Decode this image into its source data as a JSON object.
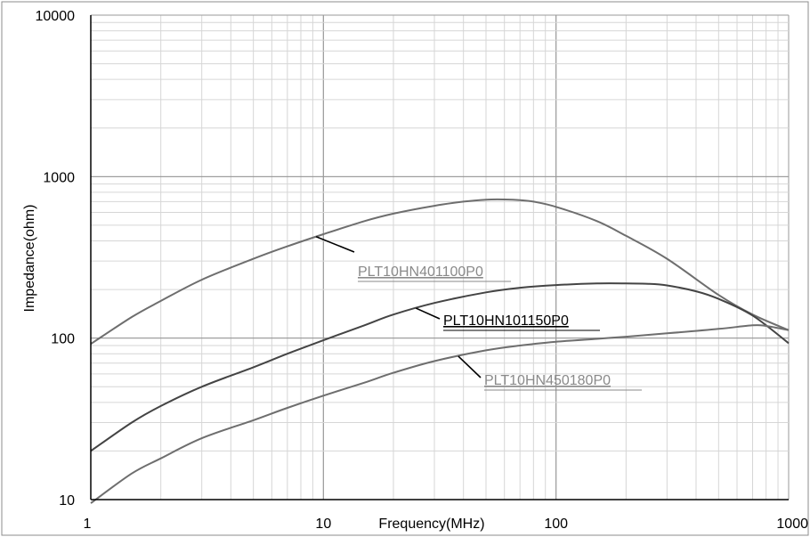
{
  "chart_data": {
    "type": "line",
    "xscale": "log",
    "yscale": "log",
    "xlim": [
      1,
      1000
    ],
    "ylim": [
      10,
      10000
    ],
    "xlabel": "Frequency(MHz)",
    "ylabel": "Impedance(ohm)",
    "grid": true,
    "x_ticks": [
      "1",
      "10",
      "100",
      "1000"
    ],
    "y_ticks": [
      "10",
      "100",
      "1000",
      "10000"
    ],
    "series": [
      {
        "name": "PLT10HN401100P0",
        "color": "#6e6e6e",
        "label_color": "#8a8a8a",
        "x": [
          1,
          1.5,
          2,
          3,
          5,
          7,
          10,
          15,
          20,
          30,
          40,
          50,
          60,
          70,
          80,
          100,
          150,
          200,
          300,
          500,
          700,
          1000
        ],
        "y": [
          92,
          135,
          170,
          230,
          310,
          370,
          440,
          530,
          590,
          660,
          700,
          720,
          722,
          715,
          700,
          650,
          530,
          430,
          310,
          185,
          140,
          112
        ]
      },
      {
        "name": "PLT10HN101150P0",
        "color": "#444444",
        "label_color": "#000000",
        "x": [
          1,
          1.5,
          2,
          3,
          5,
          7,
          10,
          15,
          20,
          30,
          50,
          70,
          100,
          150,
          200,
          250,
          300,
          400,
          500,
          700,
          1000
        ],
        "y": [
          20,
          30,
          38,
          50,
          66,
          80,
          97,
          120,
          140,
          165,
          192,
          205,
          213,
          218,
          218,
          217,
          212,
          195,
          175,
          138,
          93
        ]
      },
      {
        "name": "PLT10HN450180P0",
        "color": "#6e6e6e",
        "label_color": "#8a8a8a",
        "x": [
          1,
          1.5,
          2,
          3,
          5,
          7,
          10,
          15,
          20,
          30,
          50,
          70,
          100,
          150,
          200,
          300,
          500,
          700,
          800,
          1000
        ],
        "y": [
          9.5,
          14.5,
          18,
          24,
          31,
          37,
          44,
          53,
          61,
          72,
          84,
          90,
          95,
          99,
          102,
          107,
          114,
          120,
          119,
          112
        ]
      }
    ]
  }
}
